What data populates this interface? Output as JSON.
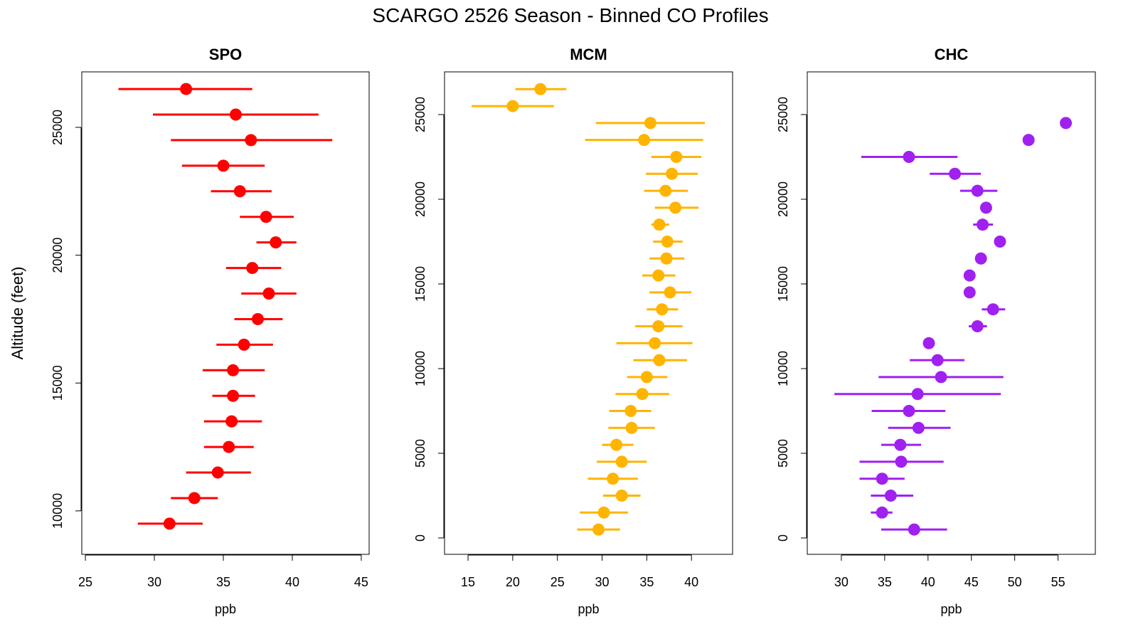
{
  "title": "SCARGO 2526 Season - Binned CO Profiles",
  "chart_data": [
    {
      "type": "scatter",
      "title": "SPO",
      "xlabel": "ppb",
      "ylabel": "Altitude (feet)",
      "color": "#ff0000",
      "xlim": [
        24.74,
        45.57
      ],
      "ylim": [
        8300,
        27170
      ],
      "xticks": [
        25,
        30,
        35,
        40,
        45
      ],
      "yticks": [
        10000,
        15000,
        20000,
        25000
      ],
      "grid": false,
      "points": [
        {
          "y": 26500,
          "x": 32.3,
          "lo": 27.4,
          "hi": 37.1
        },
        {
          "y": 25500,
          "x": 35.9,
          "lo": 29.9,
          "hi": 41.9
        },
        {
          "y": 24500,
          "x": 37.0,
          "lo": 31.2,
          "hi": 42.9
        },
        {
          "y": 23500,
          "x": 35.0,
          "lo": 32.0,
          "hi": 38.0
        },
        {
          "y": 22500,
          "x": 36.2,
          "lo": 34.1,
          "hi": 38.5
        },
        {
          "y": 21500,
          "x": 38.1,
          "lo": 36.2,
          "hi": 40.1
        },
        {
          "y": 20500,
          "x": 38.8,
          "lo": 37.4,
          "hi": 40.3
        },
        {
          "y": 19500,
          "x": 37.1,
          "lo": 35.2,
          "hi": 39.2
        },
        {
          "y": 18500,
          "x": 38.3,
          "lo": 36.3,
          "hi": 40.3
        },
        {
          "y": 17500,
          "x": 37.5,
          "lo": 35.8,
          "hi": 39.3
        },
        {
          "y": 16500,
          "x": 36.5,
          "lo": 34.5,
          "hi": 38.6
        },
        {
          "y": 15500,
          "x": 35.7,
          "lo": 33.5,
          "hi": 38.0
        },
        {
          "y": 14500,
          "x": 35.7,
          "lo": 34.2,
          "hi": 37.3
        },
        {
          "y": 13500,
          "x": 35.6,
          "lo": 33.6,
          "hi": 37.8
        },
        {
          "y": 12500,
          "x": 35.4,
          "lo": 33.6,
          "hi": 37.2
        },
        {
          "y": 11500,
          "x": 34.6,
          "lo": 32.3,
          "hi": 37.0
        },
        {
          "y": 10500,
          "x": 32.9,
          "lo": 31.2,
          "hi": 34.6
        },
        {
          "y": 9500,
          "x": 31.1,
          "lo": 28.8,
          "hi": 33.5
        }
      ]
    },
    {
      "type": "scatter",
      "title": "MCM",
      "xlabel": "ppb",
      "ylabel": "",
      "color": "#ffb400",
      "xlim": [
        12.37,
        44.6
      ],
      "ylim": [
        -966,
        27520
      ],
      "xticks": [
        15,
        20,
        25,
        30,
        35,
        40
      ],
      "yticks": [
        0,
        5000,
        10000,
        15000,
        20000,
        25000
      ],
      "grid": false,
      "points": [
        {
          "y": 26500,
          "x": 23.1,
          "lo": 20.3,
          "hi": 26.0
        },
        {
          "y": 25500,
          "x": 20.0,
          "lo": 15.4,
          "hi": 24.6
        },
        {
          "y": 24500,
          "x": 35.4,
          "lo": 29.3,
          "hi": 41.5
        },
        {
          "y": 23500,
          "x": 34.7,
          "lo": 28.1,
          "hi": 41.3
        },
        {
          "y": 22500,
          "x": 38.3,
          "lo": 35.5,
          "hi": 41.1
        },
        {
          "y": 21500,
          "x": 37.8,
          "lo": 34.9,
          "hi": 40.7
        },
        {
          "y": 20500,
          "x": 37.1,
          "lo": 34.7,
          "hi": 39.6
        },
        {
          "y": 19500,
          "x": 38.2,
          "lo": 35.9,
          "hi": 40.8
        },
        {
          "y": 18500,
          "x": 36.4,
          "lo": 35.5,
          "hi": 37.5
        },
        {
          "y": 17500,
          "x": 37.3,
          "lo": 35.7,
          "hi": 39.0
        },
        {
          "y": 16500,
          "x": 37.2,
          "lo": 35.3,
          "hi": 39.2
        },
        {
          "y": 15500,
          "x": 36.3,
          "lo": 34.5,
          "hi": 38.2
        },
        {
          "y": 14500,
          "x": 37.6,
          "lo": 35.3,
          "hi": 40.0
        },
        {
          "y": 13500,
          "x": 36.7,
          "lo": 35.0,
          "hi": 38.5
        },
        {
          "y": 12500,
          "x": 36.3,
          "lo": 33.7,
          "hi": 39.0
        },
        {
          "y": 11500,
          "x": 35.9,
          "lo": 31.6,
          "hi": 40.1
        },
        {
          "y": 10500,
          "x": 36.4,
          "lo": 33.5,
          "hi": 39.5
        },
        {
          "y": 9500,
          "x": 35.0,
          "lo": 32.8,
          "hi": 37.3
        },
        {
          "y": 8500,
          "x": 34.5,
          "lo": 31.5,
          "hi": 37.5
        },
        {
          "y": 7500,
          "x": 33.2,
          "lo": 30.8,
          "hi": 35.5
        },
        {
          "y": 6500,
          "x": 33.3,
          "lo": 30.7,
          "hi": 35.9
        },
        {
          "y": 5500,
          "x": 31.6,
          "lo": 30.0,
          "hi": 33.5
        },
        {
          "y": 4500,
          "x": 32.2,
          "lo": 29.4,
          "hi": 35.0
        },
        {
          "y": 3500,
          "x": 31.2,
          "lo": 28.4,
          "hi": 34.0
        },
        {
          "y": 2500,
          "x": 32.2,
          "lo": 30.1,
          "hi": 34.3
        },
        {
          "y": 1500,
          "x": 30.2,
          "lo": 27.5,
          "hi": 32.9
        },
        {
          "y": 500,
          "x": 29.6,
          "lo": 27.2,
          "hi": 32.0
        }
      ]
    },
    {
      "type": "scatter",
      "title": "CHC",
      "xlabel": "ppb",
      "ylabel": "",
      "color": "#a020f0",
      "xlim": [
        26.07,
        59.3
      ],
      "ylim": [
        -966,
        27520
      ],
      "xticks": [
        30,
        35,
        40,
        45,
        50,
        55
      ],
      "yticks": [
        0,
        5000,
        10000,
        15000,
        20000,
        25000
      ],
      "grid": false,
      "points": [
        {
          "y": 24500,
          "x": 55.9,
          "lo": null,
          "hi": null
        },
        {
          "y": 23500,
          "x": 51.6,
          "lo": null,
          "hi": null
        },
        {
          "y": 22500,
          "x": 37.8,
          "lo": 32.3,
          "hi": 43.4
        },
        {
          "y": 21500,
          "x": 43.1,
          "lo": 40.2,
          "hi": 46.1
        },
        {
          "y": 20500,
          "x": 45.7,
          "lo": 43.7,
          "hi": 48.0
        },
        {
          "y": 19500,
          "x": 46.7,
          "lo": null,
          "hi": null
        },
        {
          "y": 18500,
          "x": 46.3,
          "lo": 45.2,
          "hi": 47.5
        },
        {
          "y": 17500,
          "x": 48.3,
          "lo": null,
          "hi": null
        },
        {
          "y": 16500,
          "x": 46.1,
          "lo": null,
          "hi": null
        },
        {
          "y": 15500,
          "x": 44.8,
          "lo": null,
          "hi": null
        },
        {
          "y": 14500,
          "x": 44.8,
          "lo": null,
          "hi": null
        },
        {
          "y": 13500,
          "x": 47.5,
          "lo": 46.2,
          "hi": 48.9
        },
        {
          "y": 12500,
          "x": 45.7,
          "lo": 44.7,
          "hi": 46.8
        },
        {
          "y": 11500,
          "x": 40.1,
          "lo": null,
          "hi": null
        },
        {
          "y": 10500,
          "x": 41.1,
          "lo": 37.9,
          "hi": 44.2
        },
        {
          "y": 9500,
          "x": 41.5,
          "lo": 34.3,
          "hi": 48.7
        },
        {
          "y": 8500,
          "x": 38.8,
          "lo": 29.2,
          "hi": 48.4
        },
        {
          "y": 7500,
          "x": 37.8,
          "lo": 33.5,
          "hi": 42.0
        },
        {
          "y": 6500,
          "x": 38.9,
          "lo": 35.4,
          "hi": 42.6
        },
        {
          "y": 5500,
          "x": 36.8,
          "lo": 34.6,
          "hi": 39.2
        },
        {
          "y": 4500,
          "x": 36.9,
          "lo": 32.1,
          "hi": 41.8
        },
        {
          "y": 3500,
          "x": 34.7,
          "lo": 32.1,
          "hi": 37.3
        },
        {
          "y": 2500,
          "x": 35.7,
          "lo": 33.4,
          "hi": 38.3
        },
        {
          "y": 1500,
          "x": 34.7,
          "lo": 33.4,
          "hi": 35.9
        },
        {
          "y": 500,
          "x": 38.4,
          "lo": 34.6,
          "hi": 42.2
        }
      ]
    }
  ]
}
